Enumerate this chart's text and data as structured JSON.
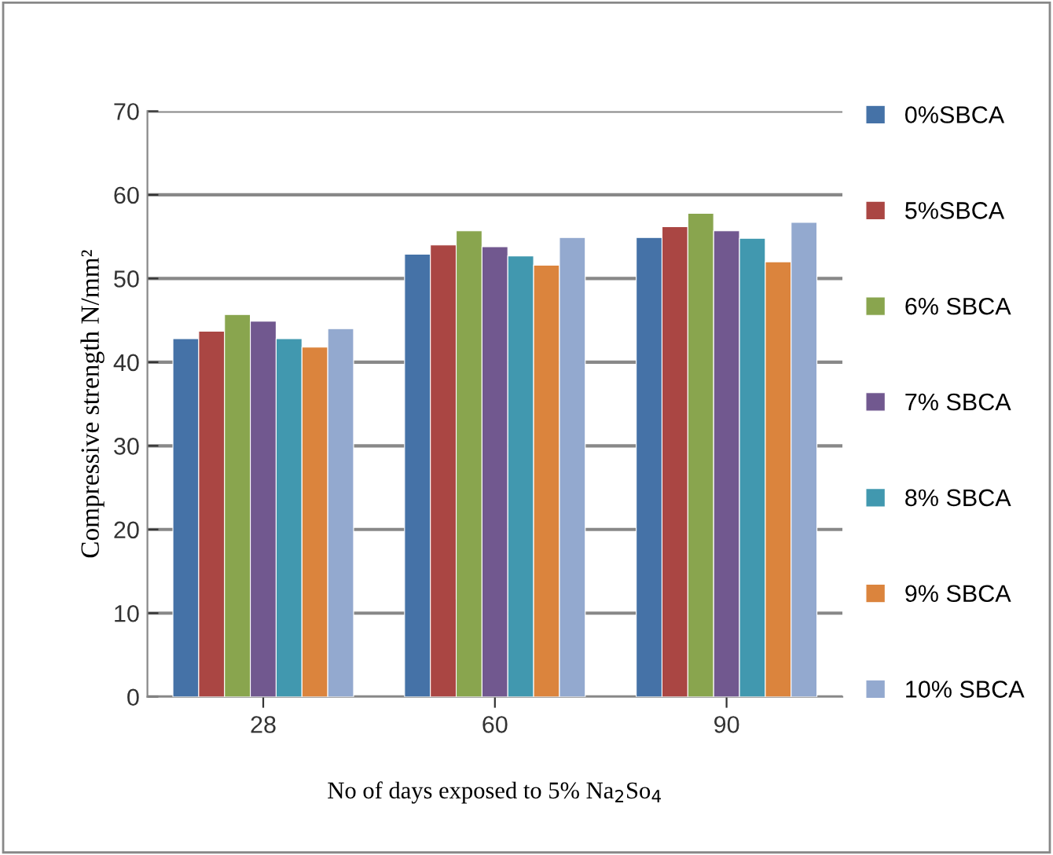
{
  "chart_data": {
    "type": "bar",
    "xlabel": "No of days exposed to 5% Na$_{2}$So$_{4}$",
    "ylabel": "Compressive strength N/mm²",
    "categories": [
      "28",
      "60",
      "90"
    ],
    "series": [
      {
        "name": "0%SBCA",
        "color": "#4572a7",
        "values": [
          42.8,
          52.9,
          54.9
        ]
      },
      {
        "name": "5%SBCA",
        "color": "#aa4643",
        "values": [
          43.7,
          54.0,
          56.2
        ]
      },
      {
        "name": "6% SBCA",
        "color": "#89a54e",
        "values": [
          45.7,
          55.7,
          57.8
        ]
      },
      {
        "name": "7% SBCA",
        "color": "#71588f",
        "values": [
          44.9,
          53.8,
          55.7
        ]
      },
      {
        "name": "8% SBCA",
        "color": "#4198af",
        "values": [
          42.8,
          52.7,
          54.8
        ]
      },
      {
        "name": "9% SBCA",
        "color": "#db843d",
        "values": [
          41.8,
          51.6,
          52.0
        ]
      },
      {
        "name": "10% SBCA",
        "color": "#93a9cf",
        "values": [
          44.0,
          54.9,
          56.7
        ]
      }
    ],
    "ylim": [
      0,
      70
    ],
    "yticks": [
      0,
      10,
      20,
      30,
      40,
      50,
      60,
      70
    ],
    "grid": "y",
    "legend": "right"
  }
}
